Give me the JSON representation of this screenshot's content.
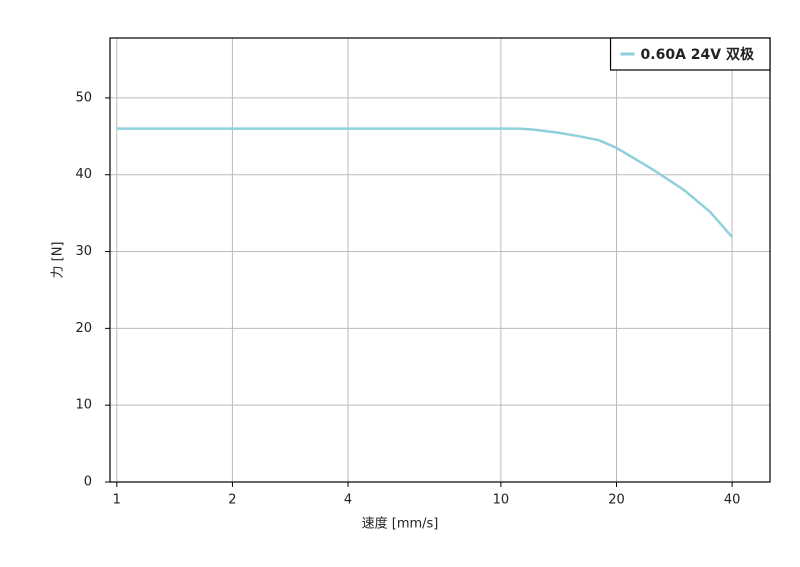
{
  "chart_data": {
    "type": "line",
    "x_label": "速度 [mm/s]",
    "y_label": "力 [N]",
    "x": [
      1,
      2,
      4,
      10,
      11,
      12,
      14,
      16,
      18,
      20,
      25,
      30,
      35,
      40
    ],
    "series": [
      {
        "name": "0.60A 24V 双极",
        "color": "#8fd0dc",
        "values": [
          46,
          46,
          46,
          46,
          46,
          45.9,
          45.5,
          45,
          44.5,
          43.5,
          40.6,
          38,
          35.2,
          31.9
        ]
      }
    ],
    "xlog": true,
    "xlim": [
      0.96,
      50.2
    ],
    "xticks": [
      1,
      2,
      4,
      10,
      20,
      40
    ],
    "ylim": [
      0,
      57.8
    ],
    "yticks": [
      0,
      10,
      20,
      30,
      40,
      50
    ],
    "grid": true,
    "legend_position": "upper right"
  }
}
